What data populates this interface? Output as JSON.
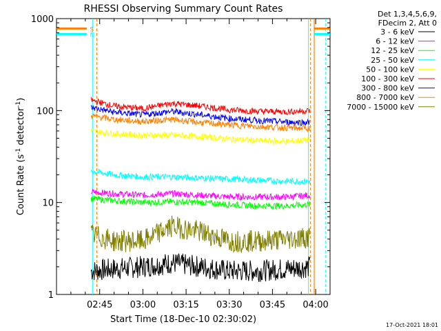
{
  "chart_data": {
    "type": "line",
    "title": "RHESSI Observing Summary Count Rates",
    "xlabel": "Start Time (18-Dec-10 02:30:02)",
    "ylabel_main": "Count Rate (s",
    "ylabel_sup1": "-1",
    "ylabel_mid": " detector",
    "ylabel_sup2": "-1",
    "ylabel_end": ")",
    "ylim": [
      1,
      1000
    ],
    "yscale": "log",
    "xlim_minutes": [
      0,
      95
    ],
    "x_ticks": [
      {
        "label": "02:45",
        "minute": 15
      },
      {
        "label": "03:00",
        "minute": 30
      },
      {
        "label": "03:15",
        "minute": 45
      },
      {
        "label": "03:30",
        "minute": 60
      },
      {
        "label": "03:45",
        "minute": 75
      },
      {
        "label": "04:00",
        "minute": 90
      }
    ],
    "y_ticks": [
      {
        "label": "1",
        "value": 1
      },
      {
        "label": "10",
        "value": 10
      },
      {
        "label": "100",
        "value": 100
      },
      {
        "label": "1000",
        "value": 1000
      }
    ],
    "legend_header": [
      "Det 1,3,4,5,6,9,",
      "FDecim 2, Att 0"
    ],
    "legend_position": "right",
    "series": [
      {
        "name": "3 - 6 keV",
        "color": "#000000",
        "x": [
          12,
          20,
          30,
          40,
          50,
          60,
          70,
          80,
          88
        ],
        "y": [
          1.8,
          1.9,
          2.0,
          2.2,
          2.0,
          1.8,
          1.8,
          1.9,
          2.0
        ]
      },
      {
        "name": "6 - 12 keV",
        "color": "#ff00ff",
        "x": [
          12,
          20,
          30,
          40,
          50,
          60,
          70,
          80,
          88
        ],
        "y": [
          13,
          12.5,
          12,
          12.5,
          12,
          11.5,
          11.5,
          11.5,
          12
        ]
      },
      {
        "name": "12 - 25 keV",
        "color": "#00ff00",
        "x": [
          12,
          20,
          30,
          40,
          50,
          60,
          70,
          80,
          88
        ],
        "y": [
          11,
          10.5,
          10,
          10.2,
          10,
          9.5,
          9.2,
          9.2,
          9.5
        ]
      },
      {
        "name": "25 - 50 keV",
        "color": "#00ffff",
        "x": [
          12,
          20,
          30,
          40,
          50,
          60,
          70,
          80,
          88
        ],
        "y": [
          22,
          20,
          19,
          19,
          18.5,
          18,
          17.5,
          17,
          17
        ]
      },
      {
        "name": "50 - 100 keV",
        "color": "#ffff00",
        "x": [
          12,
          20,
          30,
          40,
          50,
          60,
          70,
          80,
          88
        ],
        "y": [
          60,
          56,
          54,
          54,
          52,
          49,
          47,
          46,
          48
        ]
      },
      {
        "name": "100 - 300 keV",
        "color": "#ff0000",
        "x": [
          12,
          20,
          30,
          40,
          50,
          60,
          70,
          80,
          88
        ],
        "y": [
          130,
          112,
          105,
          120,
          112,
          102,
          98,
          97,
          100
        ]
      },
      {
        "name": "300 - 800 keV",
        "color": "#0000ff",
        "x": [
          12,
          20,
          30,
          40,
          50,
          60,
          70,
          80,
          88
        ],
        "y": [
          108,
          96,
          90,
          98,
          90,
          82,
          78,
          75,
          74
        ]
      },
      {
        "name": "800 - 7000 keV",
        "color": "#ff8000",
        "x": [
          12,
          20,
          30,
          40,
          50,
          60,
          70,
          80,
          88
        ],
        "y": [
          88,
          80,
          76,
          80,
          74,
          70,
          67,
          65,
          64
        ]
      },
      {
        "name": "7000 - 15000 keV",
        "color": "#808000",
        "x": [
          12,
          20,
          30,
          40,
          50,
          60,
          70,
          80,
          88
        ],
        "y": [
          4.5,
          3.8,
          3.8,
          5.5,
          4.8,
          3.8,
          3.8,
          4.0,
          4.2
        ]
      }
    ],
    "flag_bars": [
      {
        "label": "S",
        "color": "#ff8000",
        "value": 780
      },
      {
        "label": "N",
        "color": "#00ffff",
        "value": 680
      }
    ],
    "timestamp": "17-Oct-2021 18:01"
  }
}
